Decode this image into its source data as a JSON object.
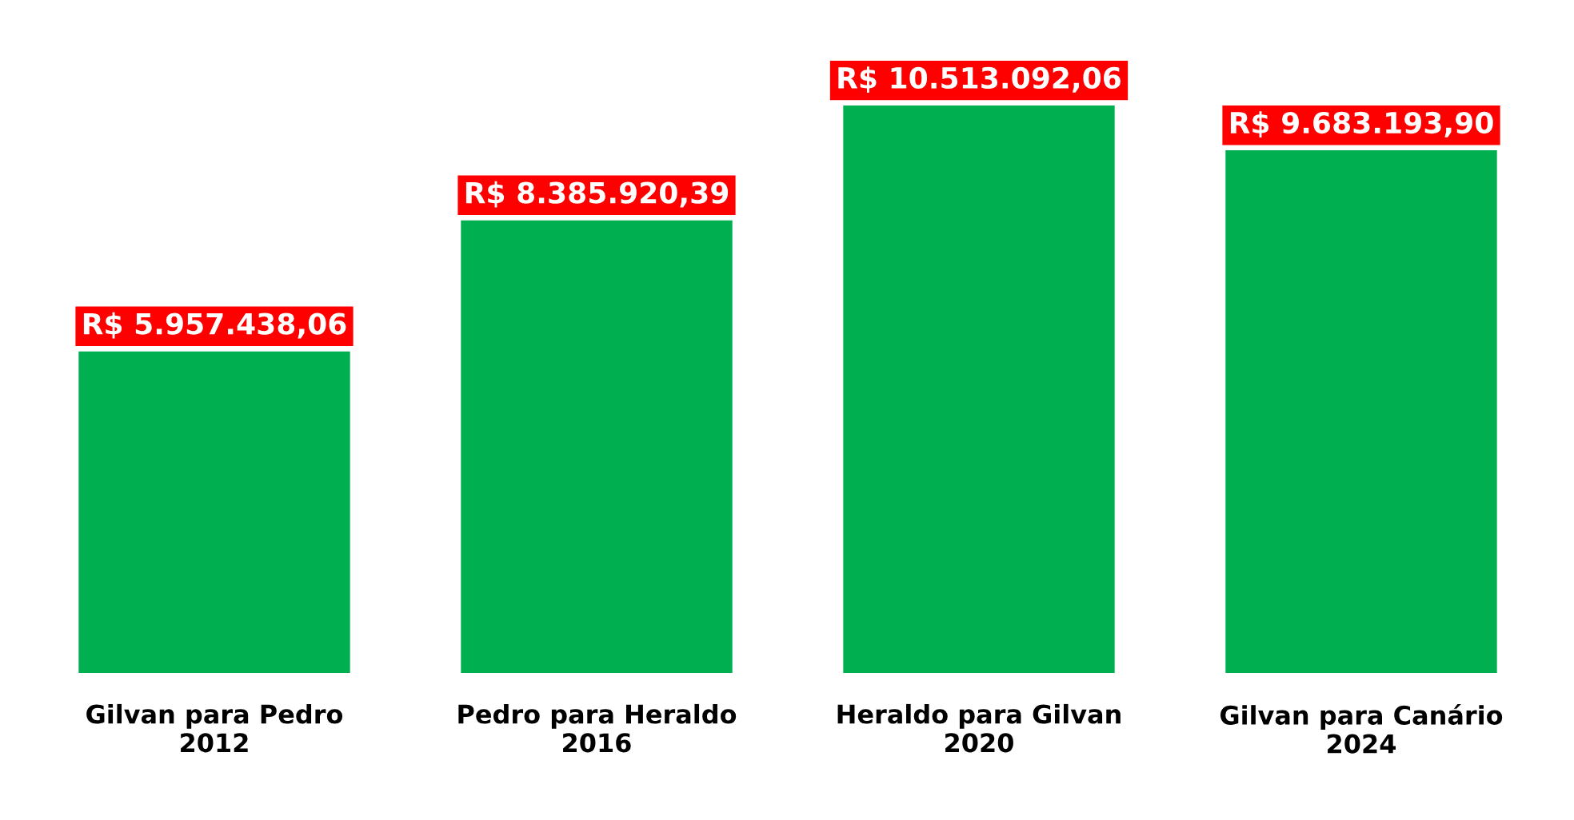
{
  "chart_data": {
    "type": "bar",
    "categories": [
      "Gilvan para Pedro\n2012",
      "Pedro para Heraldo\n2016",
      "Heraldo para Gilvan\n2020",
      "Gilvan para Canário\n2024"
    ],
    "values": [
      5957438.06,
      8385920.39,
      10513092.06,
      9683193.9
    ],
    "value_labels": [
      "R$ 5.957.438,06",
      "R$ 8.385.920,39",
      "R$ 10.513.092,06",
      "R$ 9.683.193,90"
    ],
    "color": "#00b050",
    "grid": false,
    "legend": false
  }
}
